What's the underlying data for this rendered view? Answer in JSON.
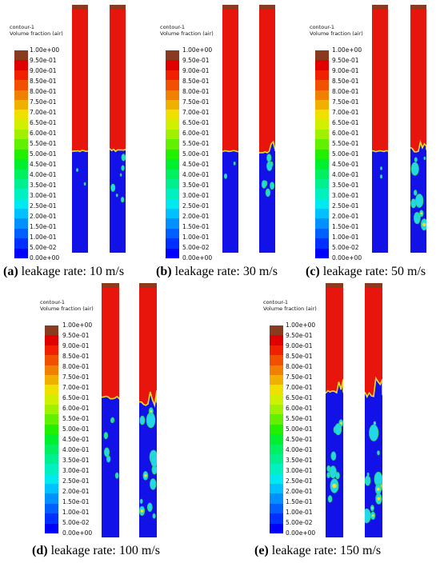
{
  "colorbar_title": "contour-1",
  "colorbar_subtitle": "Volume fraction (air)",
  "colorbar_ticks": [
    "1.00e+00",
    "9.50e-01",
    "9.00e-01",
    "8.50e-01",
    "8.00e-01",
    "7.50e-01",
    "7.00e-01",
    "6.50e-01",
    "6.00e-01",
    "5.50e-01",
    "5.00e-01",
    "4.50e-01",
    "4.00e-01",
    "3.50e-01",
    "3.00e-01",
    "2.50e-01",
    "2.00e-01",
    "1.50e-01",
    "1.00e-01",
    "5.00e-02",
    "0.00e+00"
  ],
  "colors": {
    "air": "#e8150d",
    "water": "#1212e8",
    "top_band": "#8a3a1e",
    "interface": "#2fd65a",
    "interface_glow": "#f0e02a",
    "cyan": "#22d8e8"
  },
  "panels": [
    {
      "label": "(a)",
      "caption": "leakage rate: 10 m/s"
    },
    {
      "label": "(b)",
      "caption": "leakage rate: 30 m/s"
    },
    {
      "label": "(c)",
      "caption": "leakage rate: 50 m/s"
    },
    {
      "label": "(d)",
      "caption": "leakage rate: 100 m/s"
    },
    {
      "label": "(e)",
      "caption": "leakage rate: 150 m/s"
    }
  ]
}
